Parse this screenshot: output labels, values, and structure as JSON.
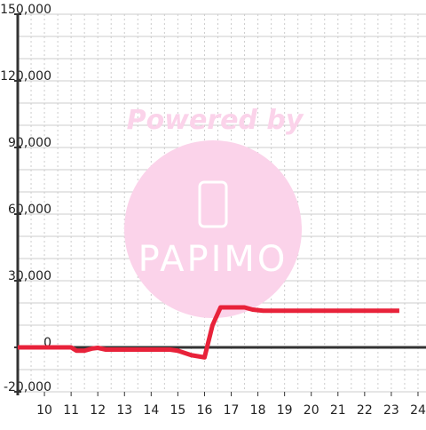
{
  "chart_data": {
    "type": "line",
    "watermark": {
      "top": "Powered by",
      "logo": "PAPIMO"
    },
    "x": [
      9,
      10,
      11,
      11.2,
      11.5,
      11.8,
      12,
      12.3,
      13,
      14,
      14.7,
      15,
      15.5,
      16,
      16.3,
      16.6,
      17,
      17.5,
      17.8,
      18.2,
      19,
      20,
      21,
      22,
      23,
      23.3
    ],
    "series": [
      {
        "color": "#e8223a",
        "values": [
          0,
          0,
          0,
          -1500,
          -1500,
          -500,
          -200,
          -1000,
          -1000,
          -1000,
          -1000,
          -1500,
          -3500,
          -4500,
          10000,
          18000,
          18000,
          18000,
          17000,
          16500,
          16500,
          16500,
          16500,
          16500,
          16500,
          16500
        ]
      }
    ],
    "xlim": [
      9,
      24.3
    ],
    "ylim": [
      -20000,
      150000
    ],
    "xticks": [
      10,
      11,
      12,
      13,
      14,
      15,
      16,
      17,
      18,
      19,
      20,
      21,
      22,
      23,
      24
    ],
    "x_minor_ticks": [
      9.5,
      10.5,
      11.5,
      12.5,
      13.5,
      14.5,
      15.5,
      16.5,
      17.5,
      18.5,
      19.5,
      20.5,
      21.5,
      22.5,
      23.5
    ],
    "yticks": [
      {
        "value": -20000,
        "label": "-20,000"
      },
      0,
      {
        "value": 30000,
        "label": "30,000"
      },
      {
        "value": 60000,
        "label": "60,000"
      },
      {
        "value": 90000,
        "label": "90,000"
      },
      {
        "value": 120000,
        "label": "120,000"
      },
      {
        "value": 150000,
        "label": "150,000"
      }
    ],
    "y_minor_ticks": [
      -10000,
      10000,
      20000,
      40000,
      50000,
      70000,
      80000,
      100000,
      110000,
      130000,
      140000
    ],
    "grid": true
  }
}
